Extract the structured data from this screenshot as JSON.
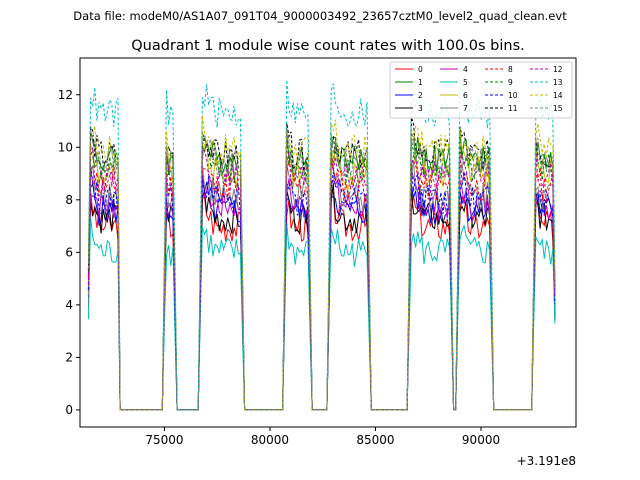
{
  "header": {
    "file_label": "Data file: modeM0/AS1A07_091T04_9000003492_23657cztM0_level2_quad_clean.evt"
  },
  "chart_data": {
    "type": "line",
    "title": "Quadrant 1 module wise count rates with 100.0s bins.",
    "xlabel": "",
    "ylabel": "",
    "x_offset_label": "+3.191e8",
    "xlim": [
      71000,
      94500
    ],
    "ylim": [
      -0.65,
      13.4
    ],
    "xticks": [
      75000,
      80000,
      85000,
      90000
    ],
    "xtick_labels": [
      "75000",
      "80000",
      "85000",
      "90000"
    ],
    "yticks": [
      0,
      2,
      4,
      6,
      8,
      10,
      12
    ],
    "ytick_labels": [
      "0",
      "2",
      "4",
      "6",
      "8",
      "10",
      "12"
    ],
    "grid": false,
    "legend_placement": "top-right",
    "segments": [
      {
        "start": 71400,
        "end": 72850
      },
      {
        "start": 75000,
        "end": 75500
      },
      {
        "start": 76700,
        "end": 78700
      },
      {
        "start": 80700,
        "end": 81900
      },
      {
        "start": 82800,
        "end": 84700
      },
      {
        "start": 86600,
        "end": 88600
      },
      {
        "start": 88900,
        "end": 90500
      },
      {
        "start": 92500,
        "end": 93500
      }
    ],
    "series": [
      {
        "name": "0",
        "color": "#ff0000",
        "style": "solid",
        "level": 7.0
      },
      {
        "name": "1",
        "color": "#008000",
        "style": "solid",
        "level": 9.5
      },
      {
        "name": "2",
        "color": "#0000ff",
        "style": "solid",
        "level": 7.6
      },
      {
        "name": "3",
        "color": "#000000",
        "style": "solid",
        "level": 7.3
      },
      {
        "name": "4",
        "color": "#bf00bf",
        "style": "solid",
        "level": 7.8
      },
      {
        "name": "5",
        "color": "#00bfbf",
        "style": "solid",
        "level": 6.0
      },
      {
        "name": "6",
        "color": "#bfbf00",
        "style": "solid",
        "level": 9.0
      },
      {
        "name": "7",
        "color": "#808080",
        "style": "solid",
        "level": 8.2
      },
      {
        "name": "8",
        "color": "#ff0000",
        "style": "dashed",
        "level": 8.5
      },
      {
        "name": "9",
        "color": "#008000",
        "style": "dashed",
        "level": 9.2
      },
      {
        "name": "10",
        "color": "#0000ff",
        "style": "dashed",
        "level": 8.0
      },
      {
        "name": "11",
        "color": "#000000",
        "style": "dashed",
        "level": 9.7
      },
      {
        "name": "12",
        "color": "#bf00bf",
        "style": "dashed",
        "level": 8.8
      },
      {
        "name": "13",
        "color": "#00bfbf",
        "style": "dashed",
        "level": 11.3
      },
      {
        "name": "14",
        "color": "#bfbf00",
        "style": "dashed",
        "level": 9.9
      },
      {
        "name": "15",
        "color": "#808080",
        "style": "dashed",
        "level": 9.4
      }
    ]
  }
}
